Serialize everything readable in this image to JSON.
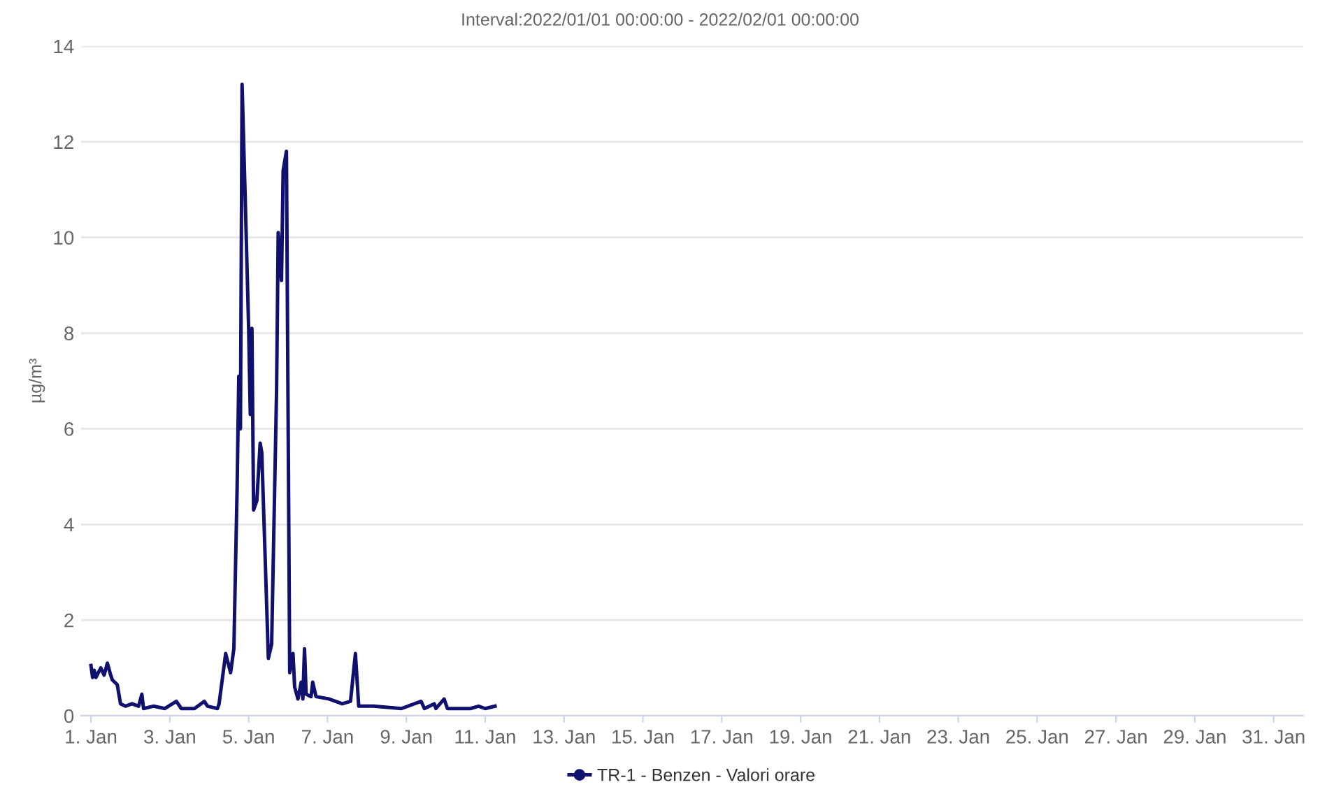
{
  "chart_data": {
    "type": "line",
    "title": "Interval:2022/01/01 00:00:00 - 2022/02/01 00:00:00",
    "ylabel": "µg/m³",
    "x": [
      "2022-01-01T00:00",
      "2022-01-01T01:00",
      "2022-01-01T02:00",
      "2022-01-01T03:00",
      "2022-01-01T06:00",
      "2022-01-01T08:00",
      "2022-01-01T10:00",
      "2022-01-01T12:00",
      "2022-01-01T13:00",
      "2022-01-01T16:00",
      "2022-01-01T18:00",
      "2022-01-01T21:00",
      "2022-01-02T01:00",
      "2022-01-02T05:00",
      "2022-01-02T07:00",
      "2022-01-02T08:00",
      "2022-01-02T14:00",
      "2022-01-02T21:00",
      "2022-01-03T04:00",
      "2022-01-03T07:00",
      "2022-01-03T15:00",
      "2022-01-03T21:00",
      "2022-01-03T23:00",
      "2022-01-04T05:00",
      "2022-01-04T06:00",
      "2022-01-04T10:00",
      "2022-01-04T13:00",
      "2022-01-04T15:00",
      "2022-01-04T17:00",
      "2022-01-04T18:00",
      "2022-01-04T19:00",
      "2022-01-04T20:00",
      "2022-01-04T22:00",
      "2022-01-05T00:00",
      "2022-01-05T01:00",
      "2022-01-05T02:00",
      "2022-01-05T03:00",
      "2022-01-05T05:00",
      "2022-01-05T07:00",
      "2022-01-05T08:00",
      "2022-01-05T12:00",
      "2022-01-05T14:00",
      "2022-01-05T17:00",
      "2022-01-05T18:00",
      "2022-01-05T20:00",
      "2022-01-05T21:00",
      "2022-01-05T23:00",
      "2022-01-06T01:00",
      "2022-01-06T03:00",
      "2022-01-06T04:00",
      "2022-01-06T06:00",
      "2022-01-06T08:00",
      "2022-01-06T09:00",
      "2022-01-06T10:00",
      "2022-01-06T11:00",
      "2022-01-06T14:00",
      "2022-01-06T15:00",
      "2022-01-06T17:00",
      "2022-01-07T01:00",
      "2022-01-07T09:00",
      "2022-01-07T14:00",
      "2022-01-07T17:00",
      "2022-01-07T19:00",
      "2022-01-08T04:00",
      "2022-01-08T21:00",
      "2022-01-09T09:00",
      "2022-01-09T11:00",
      "2022-01-09T17:00",
      "2022-01-09T18:00",
      "2022-01-09T23:00",
      "2022-01-10T01:00",
      "2022-01-10T15:00",
      "2022-01-10T20:00",
      "2022-01-11T00:00",
      "2022-01-11T06:00"
    ],
    "series": [
      {
        "name": "TR-1 - Benzen - Valori orare",
        "color": "#10106e",
        "values": [
          1.05,
          0.8,
          0.95,
          0.8,
          1.0,
          0.85,
          1.1,
          0.85,
          0.75,
          0.65,
          0.25,
          0.2,
          0.25,
          0.2,
          0.45,
          0.15,
          0.2,
          0.15,
          0.3,
          0.15,
          0.15,
          0.3,
          0.2,
          0.15,
          0.25,
          1.3,
          0.9,
          1.4,
          4.8,
          7.1,
          6.0,
          13.2,
          10.7,
          8.1,
          6.3,
          8.1,
          4.3,
          4.5,
          5.7,
          5.5,
          1.2,
          1.5,
          6.8,
          10.1,
          9.1,
          11.4,
          11.8,
          0.9,
          1.3,
          0.6,
          0.35,
          0.7,
          0.35,
          1.4,
          0.45,
          0.4,
          0.7,
          0.4,
          0.35,
          0.25,
          0.3,
          1.3,
          0.2,
          0.2,
          0.15,
          0.3,
          0.15,
          0.25,
          0.15,
          0.35,
          0.15,
          0.15,
          0.2,
          0.15,
          0.2
        ]
      }
    ],
    "xlim": [
      "2021-12-31T18:00",
      "2022-01-31T18:00"
    ],
    "xticks": [
      {
        "value": "2022-01-01",
        "label": "1. Jan"
      },
      {
        "value": "2022-01-03",
        "label": "3. Jan"
      },
      {
        "value": "2022-01-05",
        "label": "5. Jan"
      },
      {
        "value": "2022-01-07",
        "label": "7. Jan"
      },
      {
        "value": "2022-01-09",
        "label": "9. Jan"
      },
      {
        "value": "2022-01-11",
        "label": "11. Jan"
      },
      {
        "value": "2022-01-13",
        "label": "13. Jan"
      },
      {
        "value": "2022-01-15",
        "label": "15. Jan"
      },
      {
        "value": "2022-01-17",
        "label": "17. Jan"
      },
      {
        "value": "2022-01-19",
        "label": "19. Jan"
      },
      {
        "value": "2022-01-21",
        "label": "21. Jan"
      },
      {
        "value": "2022-01-23",
        "label": "23. Jan"
      },
      {
        "value": "2022-01-25",
        "label": "25. Jan"
      },
      {
        "value": "2022-01-27",
        "label": "27. Jan"
      },
      {
        "value": "2022-01-29",
        "label": "29. Jan"
      },
      {
        "value": "2022-01-31",
        "label": "31. Jan"
      }
    ],
    "ylim": [
      0,
      14
    ],
    "yticks": [
      0,
      2,
      4,
      6,
      8,
      10,
      12,
      14
    ],
    "grid": "y",
    "legend": "bottom"
  }
}
